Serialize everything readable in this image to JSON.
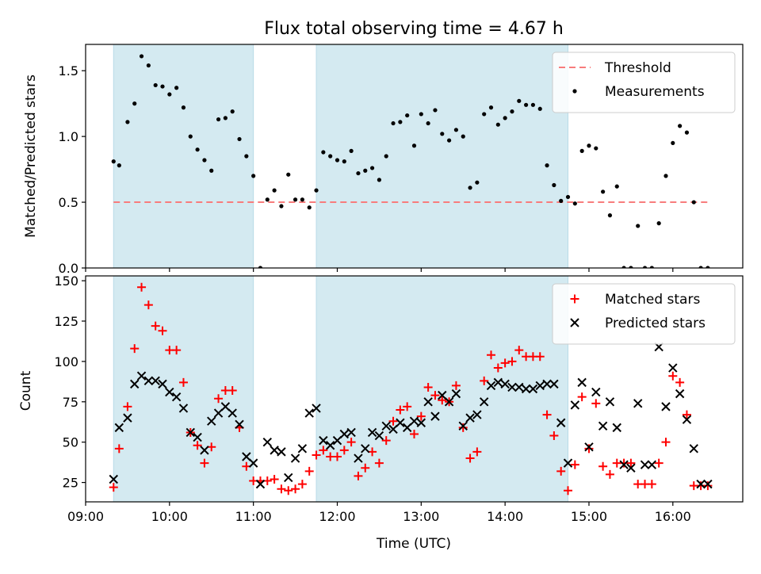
{
  "chart_data": [
    {
      "type": "scatter",
      "title": "Flux total observing time = 4.67 h",
      "xlabel": "",
      "ylabel": "Matched/Predicted stars",
      "xlim": [
        "09:00",
        "16:50"
      ],
      "ylim": [
        0,
        1.7
      ],
      "grid": false,
      "legend_position": "top-right",
      "x_ticks": [
        "09:00",
        "10:00",
        "11:00",
        "12:00",
        "13:00",
        "14:00",
        "15:00",
        "16:00"
      ],
      "y_ticks": [
        "0.0",
        "0.5",
        "1.0",
        "1.5"
      ],
      "y_tick_values": [
        0,
        0.5,
        1.0,
        1.5
      ],
      "shaded_intervals": [
        {
          "start": "09:20",
          "end": "11:00"
        },
        {
          "start": "11:45",
          "end": "14:45"
        }
      ],
      "shade_color": "#d4eaf1",
      "series": [
        {
          "name": "Threshold",
          "kind": "line",
          "style": "dashed",
          "color": "#f87c7c",
          "x": [
            "09:20",
            "16:27"
          ],
          "y": [
            0.5,
            0.5
          ]
        },
        {
          "name": "Measurements",
          "kind": "scatter",
          "marker": "dot",
          "color": "#000000",
          "x": [
            "09:20",
            "09:24",
            "09:30",
            "09:35",
            "09:40",
            "09:45",
            "09:50",
            "09:55",
            "10:00",
            "10:05",
            "10:10",
            "10:15",
            "10:20",
            "10:25",
            "10:30",
            "10:35",
            "10:40",
            "10:45",
            "10:50",
            "10:55",
            "11:00",
            "11:05",
            "11:10",
            "11:15",
            "11:20",
            "11:25",
            "11:30",
            "11:35",
            "11:40",
            "11:45",
            "11:50",
            "11:55",
            "12:00",
            "12:05",
            "12:10",
            "12:15",
            "12:20",
            "12:25",
            "12:30",
            "12:35",
            "12:40",
            "12:45",
            "12:50",
            "12:55",
            "13:00",
            "13:05",
            "13:10",
            "13:15",
            "13:20",
            "13:25",
            "13:30",
            "13:35",
            "13:40",
            "13:45",
            "13:50",
            "13:55",
            "14:00",
            "14:05",
            "14:10",
            "14:15",
            "14:20",
            "14:25",
            "14:30",
            "14:35",
            "14:40",
            "14:45",
            "14:50",
            "14:55",
            "15:00",
            "15:05",
            "15:10",
            "15:15",
            "15:20",
            "15:25",
            "15:30",
            "15:35",
            "15:40",
            "15:45",
            "15:50",
            "15:55",
            "16:00",
            "16:05",
            "16:10",
            "16:15",
            "16:20",
            "16:25"
          ],
          "y": [
            0.81,
            0.78,
            1.11,
            1.25,
            1.61,
            1.54,
            1.39,
            1.38,
            1.32,
            1.37,
            1.22,
            1.0,
            0.9,
            0.82,
            0.74,
            1.13,
            1.14,
            1.19,
            0.98,
            0.85,
            0.7,
            0.0,
            0.52,
            0.59,
            0.47,
            0.71,
            0.52,
            0.52,
            0.46,
            0.59,
            0.88,
            0.85,
            0.82,
            0.81,
            0.89,
            0.72,
            0.74,
            0.76,
            0.67,
            0.85,
            1.1,
            1.11,
            1.16,
            0.93,
            1.17,
            1.1,
            1.2,
            1.02,
            0.97,
            1.05,
            1.0,
            0.61,
            0.65,
            1.17,
            1.22,
            1.09,
            1.14,
            1.19,
            1.27,
            1.24,
            1.24,
            1.21,
            0.78,
            0.63,
            0.51,
            0.54,
            0.49,
            0.89,
            0.93,
            0.91,
            0.58,
            0.4,
            0.62,
            0.0,
            0.0,
            0.32,
            0.0,
            0.0,
            0.34,
            0.7,
            0.95,
            1.08,
            1.03,
            0.5,
            0.0,
            0.0
          ]
        }
      ]
    },
    {
      "type": "scatter",
      "title": "",
      "xlabel": "Time (UTC)",
      "ylabel": "Count",
      "xlim": [
        "09:00",
        "16:50"
      ],
      "ylim": [
        13,
        153
      ],
      "grid": false,
      "legend_position": "top-right",
      "x_ticks": [
        "09:00",
        "10:00",
        "11:00",
        "12:00",
        "13:00",
        "14:00",
        "15:00",
        "16:00"
      ],
      "y_ticks": [
        "25",
        "50",
        "75",
        "100",
        "125",
        "150"
      ],
      "y_tick_values": [
        25,
        50,
        75,
        100,
        125,
        150
      ],
      "shaded_intervals": [
        {
          "start": "09:20",
          "end": "11:00"
        },
        {
          "start": "11:45",
          "end": "14:45"
        }
      ],
      "shade_color": "#d4eaf1",
      "series": [
        {
          "name": "Matched stars",
          "kind": "scatter",
          "marker": "plus",
          "color": "#ff0000",
          "x": [
            "09:20",
            "09:24",
            "09:30",
            "09:35",
            "09:40",
            "09:45",
            "09:50",
            "09:55",
            "10:00",
            "10:05",
            "10:10",
            "10:15",
            "10:20",
            "10:25",
            "10:30",
            "10:35",
            "10:40",
            "10:45",
            "10:50",
            "10:55",
            "11:00",
            "11:05",
            "11:10",
            "11:15",
            "11:20",
            "11:25",
            "11:30",
            "11:35",
            "11:40",
            "11:45",
            "11:50",
            "11:55",
            "12:00",
            "12:05",
            "12:10",
            "12:15",
            "12:20",
            "12:25",
            "12:30",
            "12:35",
            "12:40",
            "12:45",
            "12:50",
            "12:55",
            "13:00",
            "13:05",
            "13:10",
            "13:15",
            "13:20",
            "13:25",
            "13:30",
            "13:35",
            "13:40",
            "13:45",
            "13:50",
            "13:55",
            "14:00",
            "14:05",
            "14:10",
            "14:15",
            "14:20",
            "14:25",
            "14:30",
            "14:35",
            "14:40",
            "14:45",
            "14:50",
            "14:55",
            "15:00",
            "15:05",
            "15:10",
            "15:15",
            "15:20",
            "15:25",
            "15:30",
            "15:35",
            "15:40",
            "15:45",
            "15:50",
            "15:55",
            "16:00",
            "16:05",
            "16:10",
            "16:15",
            "16:20",
            "16:25"
          ],
          "y": [
            22,
            46,
            72,
            108,
            146,
            135,
            122,
            119,
            107,
            107,
            87,
            56,
            48,
            37,
            47,
            77,
            82,
            82,
            59,
            35,
            26,
            26,
            26,
            27,
            21,
            20,
            21,
            24,
            32,
            42,
            45,
            41,
            41,
            45,
            50,
            29,
            34,
            44,
            37,
            51,
            63,
            70,
            72,
            55,
            66,
            84,
            79,
            76,
            75,
            85,
            59,
            40,
            44,
            88,
            104,
            96,
            99,
            100,
            107,
            103,
            103,
            103,
            67,
            54,
            32,
            20,
            36,
            78,
            46,
            74,
            35,
            30,
            37,
            37,
            37,
            24,
            24,
            24,
            37,
            50,
            91,
            87,
            67,
            23,
            23,
            23
          ]
        },
        {
          "name": "Predicted stars",
          "kind": "scatter",
          "marker": "x",
          "color": "#000000",
          "x": [
            "09:20",
            "09:24",
            "09:30",
            "09:35",
            "09:40",
            "09:45",
            "09:50",
            "09:55",
            "10:00",
            "10:05",
            "10:10",
            "10:15",
            "10:20",
            "10:25",
            "10:30",
            "10:35",
            "10:40",
            "10:45",
            "10:50",
            "10:55",
            "11:00",
            "11:05",
            "11:10",
            "11:15",
            "11:20",
            "11:25",
            "11:30",
            "11:35",
            "11:40",
            "11:45",
            "11:50",
            "11:55",
            "12:00",
            "12:05",
            "12:10",
            "12:15",
            "12:20",
            "12:25",
            "12:30",
            "12:35",
            "12:40",
            "12:45",
            "12:50",
            "12:55",
            "13:00",
            "13:05",
            "13:10",
            "13:15",
            "13:20",
            "13:25",
            "13:30",
            "13:35",
            "13:40",
            "13:45",
            "13:50",
            "13:55",
            "14:00",
            "14:05",
            "14:10",
            "14:15",
            "14:20",
            "14:25",
            "14:30",
            "14:35",
            "14:40",
            "14:45",
            "14:50",
            "14:55",
            "15:00",
            "15:05",
            "15:10",
            "15:15",
            "15:20",
            "15:25",
            "15:30",
            "15:35",
            "15:40",
            "15:45",
            "15:50",
            "15:55",
            "16:00",
            "16:05",
            "16:10",
            "16:15",
            "16:20",
            "16:25"
          ],
          "y": [
            27,
            59,
            65,
            86,
            91,
            88,
            88,
            86,
            81,
            78,
            71,
            56,
            53,
            45,
            63,
            68,
            72,
            68,
            61,
            41,
            37,
            24,
            50,
            45,
            44,
            28,
            40,
            46,
            68,
            71,
            51,
            48,
            51,
            55,
            56,
            40,
            46,
            56,
            54,
            60,
            58,
            62,
            59,
            63,
            62,
            75,
            66,
            79,
            75,
            80,
            60,
            65,
            67,
            75,
            85,
            87,
            86,
            84,
            84,
            83,
            83,
            85,
            86,
            86,
            62,
            37,
            73,
            87,
            47,
            81,
            60,
            75,
            59,
            36,
            34,
            74,
            36,
            36,
            109,
            72,
            96,
            80,
            64,
            46,
            24,
            24
          ]
        }
      ]
    }
  ]
}
